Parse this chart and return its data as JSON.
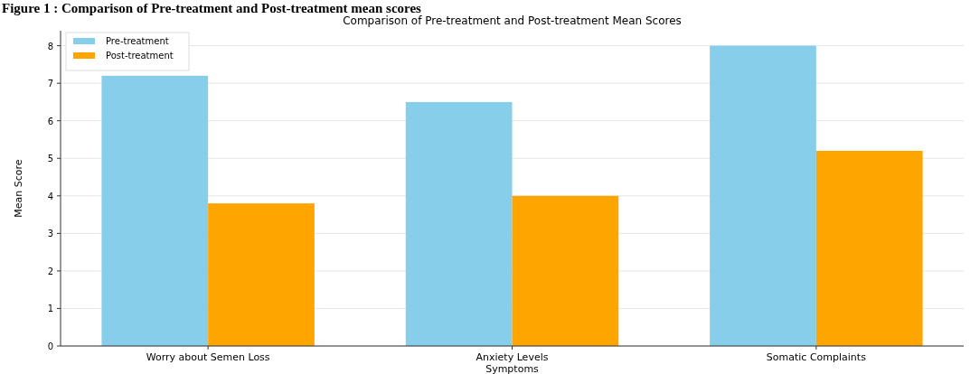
{
  "chart_data": {
    "type": "bar",
    "title": "Comparison of Pre-treatment and Post-treatment Mean Scores",
    "xlabel": "Symptoms",
    "ylabel": "Mean Score",
    "annotations": [
      "Figure 1 : Comparison of Pre-treatment and Post-treatment mean scores"
    ],
    "categories": [
      "Worry about Semen Loss",
      "Anxiety Levels",
      "Somatic Complaints"
    ],
    "series": [
      {
        "name": "Pre-treatment",
        "color": "#87ceeb",
        "values": [
          7.2,
          6.5,
          8.0
        ]
      },
      {
        "name": "Post-treatment",
        "color": "#ffa500",
        "values": [
          3.8,
          4.0,
          5.2
        ]
      }
    ],
    "ylim": [
      0,
      8.4
    ],
    "yticks": [
      0,
      1,
      2,
      3,
      4,
      5,
      6,
      7,
      8
    ],
    "grid": "y",
    "legend": "top left"
  }
}
